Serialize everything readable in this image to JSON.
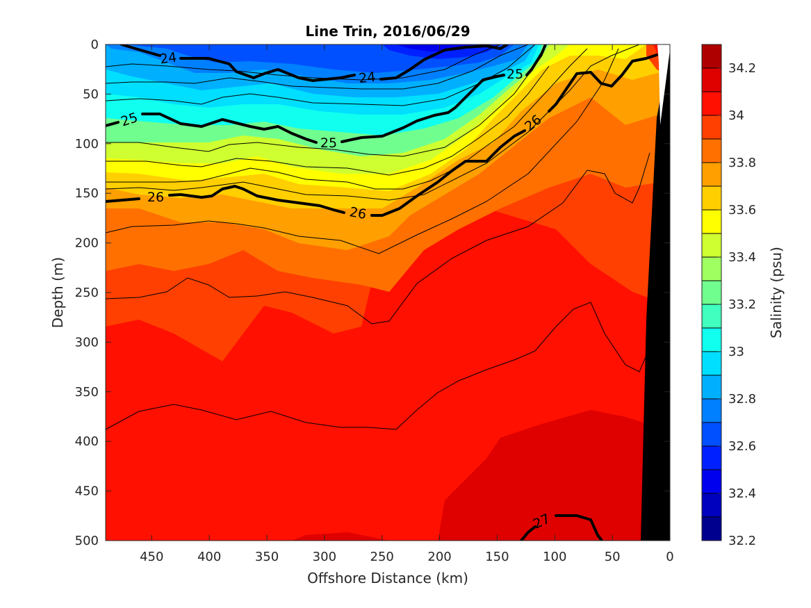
{
  "chart_data": {
    "type": "heatmap",
    "subtype": "filled-contour section",
    "title": "Line Trin, 2016/06/29",
    "xlabel": "Offshore Distance (km)",
    "ylabel": "Depth (m)",
    "colorbar_label": "Salinity (psu)",
    "xlim": [
      490,
      0
    ],
    "x_reversed": true,
    "ylim": [
      500,
      0
    ],
    "y_reversed": true,
    "x_ticks": [
      "450",
      "400",
      "350",
      "300",
      "250",
      "200",
      "150",
      "100",
      "50",
      "0"
    ],
    "y_ticks": [
      "0",
      "50",
      "100",
      "150",
      "200",
      "250",
      "300",
      "350",
      "400",
      "450",
      "500"
    ],
    "colorbar_range": [
      32.2,
      34.3
    ],
    "colorbar_ticks": [
      "32.2",
      "32.4",
      "32.6",
      "32.8",
      "33",
      "33.2",
      "33.4",
      "33.6",
      "33.8",
      "34",
      "34.2"
    ],
    "colormap": [
      "#00008f",
      "#0000bf",
      "#0000ef",
      "#0020ff",
      "#0050ff",
      "#0080ff",
      "#00b0ff",
      "#00dfff",
      "#10ffef",
      "#40ffbf",
      "#70ff8f",
      "#9fff60",
      "#cfff30",
      "#ffff00",
      "#ffcf00",
      "#ff9f00",
      "#ff7000",
      "#ff4000",
      "#ff1000",
      "#df0000",
      "#af0000"
    ],
    "salinity_depth_profiles": [
      {
        "x": 490,
        "depth": [
          0,
          50,
          100,
          150,
          200,
          250,
          300,
          350,
          400,
          450,
          500
        ],
        "salinity": [
          32.85,
          32.9,
          33.05,
          33.6,
          33.85,
          34.0,
          34.02,
          34.05,
          34.1,
          34.12,
          34.15
        ]
      },
      {
        "x": 350,
        "depth": [
          0,
          50,
          100,
          150,
          200,
          250,
          300,
          350,
          400,
          450,
          500
        ],
        "salinity": [
          32.6,
          32.7,
          33.0,
          33.5,
          33.9,
          34.0,
          34.02,
          34.08,
          34.1,
          34.12,
          34.15
        ]
      },
      {
        "x": 250,
        "depth": [
          0,
          50,
          100,
          150,
          200,
          250,
          300,
          350,
          400,
          450,
          500
        ],
        "salinity": [
          32.55,
          32.65,
          32.9,
          33.3,
          33.7,
          33.9,
          33.98,
          34.05,
          34.1,
          34.15,
          34.2
        ]
      },
      {
        "x": 150,
        "depth": [
          0,
          50,
          100,
          150,
          200,
          250,
          300,
          350,
          400,
          450,
          500
        ],
        "salinity": [
          32.7,
          32.9,
          33.3,
          33.8,
          34.0,
          34.05,
          34.1,
          34.12,
          34.18,
          34.22,
          34.25
        ]
      },
      {
        "x": 70,
        "depth": [
          0,
          50,
          100,
          150,
          200,
          250,
          300,
          350,
          400,
          450,
          500
        ],
        "salinity": [
          33.7,
          33.8,
          34.0,
          34.05,
          34.08,
          34.1,
          34.12,
          34.15,
          34.2,
          34.25,
          34.28
        ]
      }
    ],
    "density_contours_labeled": [
      {
        "label": "24",
        "x": [
          478,
          460,
          440,
          400,
          380,
          360,
          340,
          310,
          270,
          240
        ],
        "depth": [
          0,
          10,
          13,
          15,
          25,
          32,
          25,
          36,
          30,
          34
        ]
      },
      {
        "label": "24",
        "x": [
          240,
          220,
          200,
          180,
          160,
          140
        ],
        "depth": [
          34,
          20,
          10,
          5,
          3,
          2
        ]
      },
      {
        "label": "25",
        "x": [
          490,
          470,
          450,
          410,
          380,
          345,
          330,
          300,
          250,
          210,
          175,
          155,
          130,
          120,
          115,
          113
        ],
        "depth": [
          80,
          70,
          70,
          83,
          75,
          84,
          80,
          98,
          92,
          70,
          55,
          30,
          30,
          20,
          5,
          0
        ]
      },
      {
        "label": "26",
        "x": [
          490,
          450,
          410,
          385,
          365,
          340,
          300,
          260,
          240,
          190,
          145,
          110,
          85,
          70,
          55,
          45,
          30,
          10
        ],
        "depth": [
          158,
          150,
          155,
          143,
          145,
          155,
          162,
          172,
          168,
          136,
          117,
          100,
          75,
          45,
          37,
          40,
          20,
          10
        ]
      },
      {
        "label": "27",
        "x": [
          130,
          115,
          100,
          85,
          68,
          60
        ],
        "depth": [
          500,
          485,
          475,
          475,
          480,
          500
        ]
      }
    ],
    "density_contours_unlabeled_count": 17,
    "bathymetry_mask_color": "#000000"
  }
}
